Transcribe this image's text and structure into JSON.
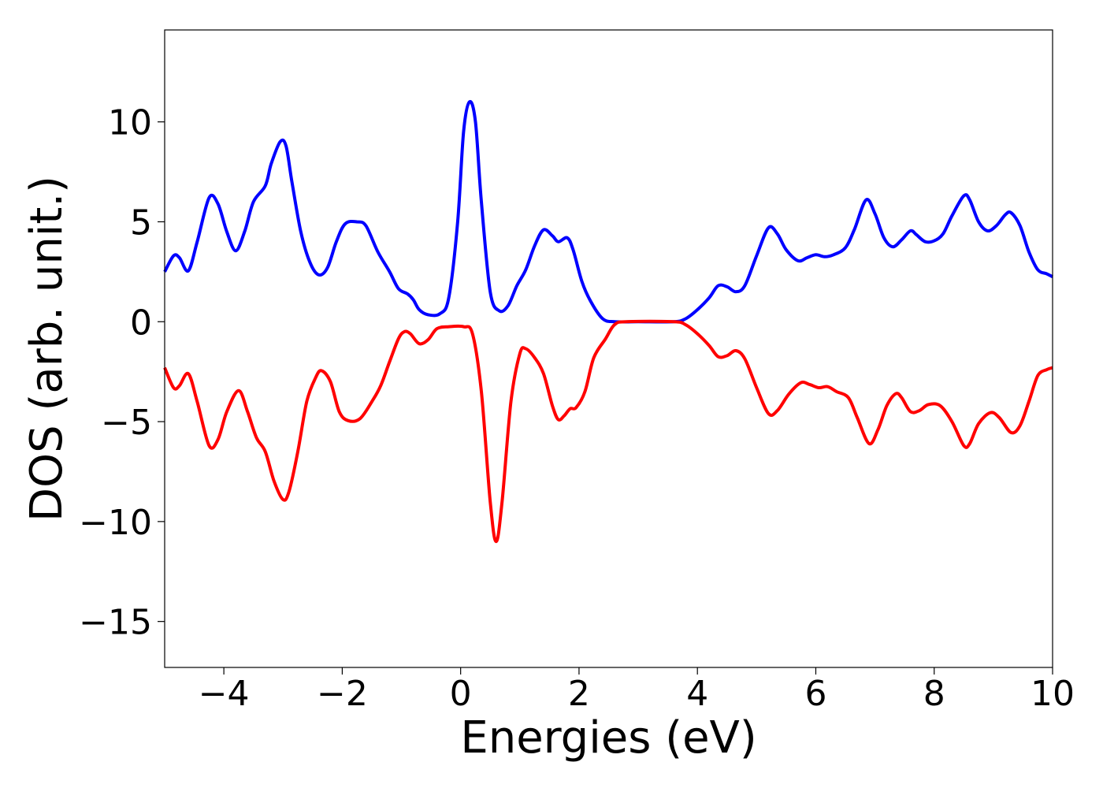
{
  "chart_data": {
    "type": "line",
    "title": "",
    "xlabel": "Energies (eV)",
    "ylabel": "DOS (arb. unit.)",
    "xlim": [
      -5,
      10
    ],
    "ylim": [
      -17.3,
      14.6
    ],
    "xticks": [
      -4,
      -2,
      0,
      2,
      4,
      6,
      8,
      10
    ],
    "yticks": [
      -15,
      -10,
      -5,
      0,
      5,
      10
    ],
    "grid": false,
    "legend": "none",
    "series": [
      {
        "color": "#0000ff",
        "points": [
          [
            -5.0,
            2.5
          ],
          [
            -4.85,
            3.3
          ],
          [
            -4.75,
            3.2
          ],
          [
            -4.6,
            2.55
          ],
          [
            -4.45,
            4.0
          ],
          [
            -4.25,
            6.2
          ],
          [
            -4.1,
            5.9
          ],
          [
            -3.95,
            4.5
          ],
          [
            -3.8,
            3.55
          ],
          [
            -3.65,
            4.5
          ],
          [
            -3.5,
            6.0
          ],
          [
            -3.3,
            6.8
          ],
          [
            -3.2,
            7.9
          ],
          [
            -3.05,
            9.0
          ],
          [
            -2.95,
            8.8
          ],
          [
            -2.85,
            7.0
          ],
          [
            -2.7,
            4.5
          ],
          [
            -2.55,
            3.0
          ],
          [
            -2.4,
            2.35
          ],
          [
            -2.25,
            2.7
          ],
          [
            -2.1,
            4.0
          ],
          [
            -1.95,
            4.9
          ],
          [
            -1.75,
            5.0
          ],
          [
            -1.6,
            4.8
          ],
          [
            -1.4,
            3.5
          ],
          [
            -1.2,
            2.5
          ],
          [
            -1.05,
            1.65
          ],
          [
            -0.9,
            1.4
          ],
          [
            -0.8,
            1.1
          ],
          [
            -0.7,
            0.6
          ],
          [
            -0.55,
            0.35
          ],
          [
            -0.35,
            0.4
          ],
          [
            -0.2,
            1.2
          ],
          [
            -0.05,
            5.0
          ],
          [
            0.05,
            9.5
          ],
          [
            0.15,
            11.0
          ],
          [
            0.25,
            10.0
          ],
          [
            0.35,
            6.0
          ],
          [
            0.5,
            1.5
          ],
          [
            0.65,
            0.55
          ],
          [
            0.8,
            0.8
          ],
          [
            0.95,
            1.8
          ],
          [
            1.1,
            2.6
          ],
          [
            1.25,
            3.8
          ],
          [
            1.4,
            4.6
          ],
          [
            1.55,
            4.3
          ],
          [
            1.65,
            4.0
          ],
          [
            1.8,
            4.2
          ],
          [
            1.9,
            3.6
          ],
          [
            2.05,
            2.0
          ],
          [
            2.2,
            1.0
          ],
          [
            2.4,
            0.15
          ],
          [
            2.6,
            0.0
          ],
          [
            3.0,
            0.0
          ],
          [
            3.6,
            0.0
          ],
          [
            3.8,
            0.15
          ],
          [
            4.0,
            0.6
          ],
          [
            4.2,
            1.2
          ],
          [
            4.35,
            1.8
          ],
          [
            4.5,
            1.75
          ],
          [
            4.65,
            1.5
          ],
          [
            4.8,
            1.8
          ],
          [
            5.0,
            3.3
          ],
          [
            5.2,
            4.7
          ],
          [
            5.35,
            4.4
          ],
          [
            5.5,
            3.6
          ],
          [
            5.7,
            3.05
          ],
          [
            5.85,
            3.2
          ],
          [
            6.0,
            3.35
          ],
          [
            6.15,
            3.25
          ],
          [
            6.3,
            3.35
          ],
          [
            6.5,
            3.7
          ],
          [
            6.65,
            4.6
          ],
          [
            6.85,
            6.1
          ],
          [
            7.0,
            5.4
          ],
          [
            7.15,
            4.2
          ],
          [
            7.3,
            3.75
          ],
          [
            7.45,
            4.1
          ],
          [
            7.6,
            4.55
          ],
          [
            7.7,
            4.35
          ],
          [
            7.85,
            4.0
          ],
          [
            8.0,
            4.05
          ],
          [
            8.15,
            4.4
          ],
          [
            8.3,
            5.3
          ],
          [
            8.5,
            6.3
          ],
          [
            8.6,
            6.1
          ],
          [
            8.75,
            5.0
          ],
          [
            8.9,
            4.55
          ],
          [
            9.05,
            4.8
          ],
          [
            9.2,
            5.35
          ],
          [
            9.3,
            5.45
          ],
          [
            9.45,
            4.8
          ],
          [
            9.6,
            3.5
          ],
          [
            9.75,
            2.6
          ],
          [
            9.9,
            2.4
          ],
          [
            10.0,
            2.25
          ]
        ]
      },
      {
        "color": "#ff0000",
        "points": [
          [
            -5.0,
            -2.3
          ],
          [
            -4.85,
            -3.3
          ],
          [
            -4.75,
            -3.2
          ],
          [
            -4.6,
            -2.6
          ],
          [
            -4.45,
            -4.0
          ],
          [
            -4.25,
            -6.2
          ],
          [
            -4.1,
            -5.9
          ],
          [
            -3.95,
            -4.5
          ],
          [
            -3.75,
            -3.45
          ],
          [
            -3.6,
            -4.5
          ],
          [
            -3.45,
            -5.8
          ],
          [
            -3.3,
            -6.5
          ],
          [
            -3.15,
            -8.0
          ],
          [
            -3.0,
            -8.9
          ],
          [
            -2.9,
            -8.5
          ],
          [
            -2.75,
            -6.5
          ],
          [
            -2.6,
            -4.0
          ],
          [
            -2.45,
            -2.8
          ],
          [
            -2.35,
            -2.45
          ],
          [
            -2.2,
            -3.0
          ],
          [
            -2.05,
            -4.5
          ],
          [
            -1.9,
            -4.95
          ],
          [
            -1.7,
            -4.85
          ],
          [
            -1.5,
            -4.0
          ],
          [
            -1.35,
            -3.2
          ],
          [
            -1.2,
            -2.0
          ],
          [
            -1.05,
            -0.85
          ],
          [
            -0.95,
            -0.5
          ],
          [
            -0.85,
            -0.6
          ],
          [
            -0.7,
            -1.1
          ],
          [
            -0.55,
            -0.9
          ],
          [
            -0.4,
            -0.35
          ],
          [
            -0.2,
            -0.25
          ],
          [
            0.05,
            -0.25
          ],
          [
            0.2,
            -0.6
          ],
          [
            0.35,
            -3.5
          ],
          [
            0.5,
            -9.0
          ],
          [
            0.6,
            -11.0
          ],
          [
            0.7,
            -9.0
          ],
          [
            0.85,
            -4.0
          ],
          [
            1.0,
            -1.6
          ],
          [
            1.1,
            -1.35
          ],
          [
            1.25,
            -1.8
          ],
          [
            1.4,
            -2.6
          ],
          [
            1.55,
            -4.2
          ],
          [
            1.65,
            -4.9
          ],
          [
            1.75,
            -4.7
          ],
          [
            1.85,
            -4.35
          ],
          [
            1.95,
            -4.3
          ],
          [
            2.1,
            -3.5
          ],
          [
            2.25,
            -1.8
          ],
          [
            2.45,
            -0.85
          ],
          [
            2.6,
            -0.15
          ],
          [
            2.8,
            0.0
          ],
          [
            3.6,
            0.0
          ],
          [
            3.8,
            -0.15
          ],
          [
            4.0,
            -0.6
          ],
          [
            4.2,
            -1.2
          ],
          [
            4.35,
            -1.75
          ],
          [
            4.5,
            -1.7
          ],
          [
            4.65,
            -1.45
          ],
          [
            4.8,
            -1.85
          ],
          [
            5.0,
            -3.3
          ],
          [
            5.2,
            -4.6
          ],
          [
            5.35,
            -4.45
          ],
          [
            5.55,
            -3.6
          ],
          [
            5.75,
            -3.05
          ],
          [
            5.9,
            -3.15
          ],
          [
            6.05,
            -3.3
          ],
          [
            6.2,
            -3.25
          ],
          [
            6.35,
            -3.5
          ],
          [
            6.55,
            -3.8
          ],
          [
            6.7,
            -4.8
          ],
          [
            6.9,
            -6.1
          ],
          [
            7.05,
            -5.4
          ],
          [
            7.2,
            -4.2
          ],
          [
            7.35,
            -3.6
          ],
          [
            7.45,
            -3.8
          ],
          [
            7.6,
            -4.5
          ],
          [
            7.75,
            -4.45
          ],
          [
            7.9,
            -4.15
          ],
          [
            8.1,
            -4.2
          ],
          [
            8.3,
            -5.0
          ],
          [
            8.5,
            -6.2
          ],
          [
            8.6,
            -6.1
          ],
          [
            8.75,
            -5.1
          ],
          [
            8.95,
            -4.55
          ],
          [
            9.1,
            -4.8
          ],
          [
            9.3,
            -5.55
          ],
          [
            9.45,
            -5.2
          ],
          [
            9.6,
            -4.0
          ],
          [
            9.75,
            -2.7
          ],
          [
            9.9,
            -2.4
          ],
          [
            10.0,
            -2.3
          ]
        ]
      }
    ]
  }
}
